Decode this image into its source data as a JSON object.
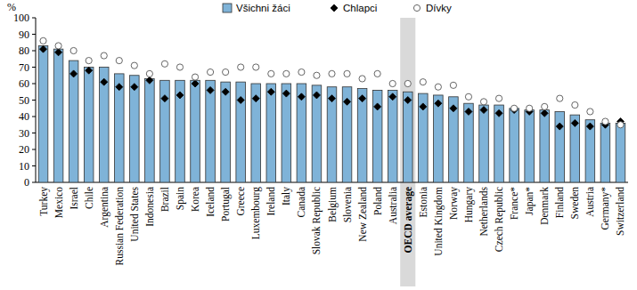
{
  "chart_data": {
    "type": "bar",
    "y_label": "%",
    "categories": [
      "Turkey",
      "Mexico",
      "Israel",
      "Chile",
      "Argentina",
      "Russian Federation",
      "United States",
      "Indonesia",
      "Brazil",
      "Spain",
      "Korea",
      "Iceland",
      "Portugal",
      "Greece",
      "Luxembourg",
      "Ireland",
      "Italy",
      "Canada",
      "Slovak Republic",
      "Belgium",
      "Slovenia",
      "New Zealand",
      "Poland",
      "Australia",
      "OECD average",
      "Estonia",
      "United Kingdom",
      "Norway",
      "Hungary",
      "Netherlands",
      "Czech Republic",
      "France*",
      "Japan*",
      "Denmark",
      "Finland",
      "Sweden",
      "Austria",
      "Germany*",
      "Switzerland"
    ],
    "series": [
      {
        "name": "Všichni žáci",
        "type": "bar",
        "color": "#7fb3d8",
        "values": [
          83,
          81,
          74,
          70,
          70,
          66,
          65,
          63,
          62,
          62,
          62,
          62,
          61,
          61,
          60,
          60,
          60,
          60,
          59,
          58,
          58,
          57,
          56,
          56,
          55,
          54,
          53,
          52,
          48,
          47,
          47,
          45,
          44,
          44,
          43,
          41,
          38,
          36,
          36
        ]
      },
      {
        "name": "Chlapci",
        "type": "scatter",
        "marker": "diamond",
        "color": "#000000",
        "values": [
          81,
          79,
          66,
          68,
          61,
          58,
          58,
          62,
          51,
          53,
          60,
          56,
          55,
          50,
          51,
          55,
          54,
          52,
          53,
          51,
          49,
          51,
          46,
          52,
          50,
          46,
          48,
          45,
          43,
          44,
          42,
          44,
          43,
          42,
          34,
          36,
          34,
          35,
          37
        ]
      },
      {
        "name": "Dívky",
        "type": "scatter",
        "marker": "circle",
        "color": "#ffffff",
        "values": [
          86,
          83,
          80,
          74,
          77,
          74,
          71,
          66,
          72,
          70,
          64,
          67,
          67,
          70,
          70,
          66,
          66,
          67,
          65,
          66,
          66,
          63,
          66,
          60,
          60,
          61,
          58,
          59,
          52,
          49,
          51,
          45,
          45,
          46,
          51,
          47,
          43,
          37,
          35
        ]
      }
    ],
    "ylim": [
      0,
      100
    ],
    "yticks": [
      0,
      10,
      20,
      30,
      40,
      50,
      60,
      70,
      80,
      90,
      100
    ],
    "grid": false,
    "legend": "top"
  }
}
